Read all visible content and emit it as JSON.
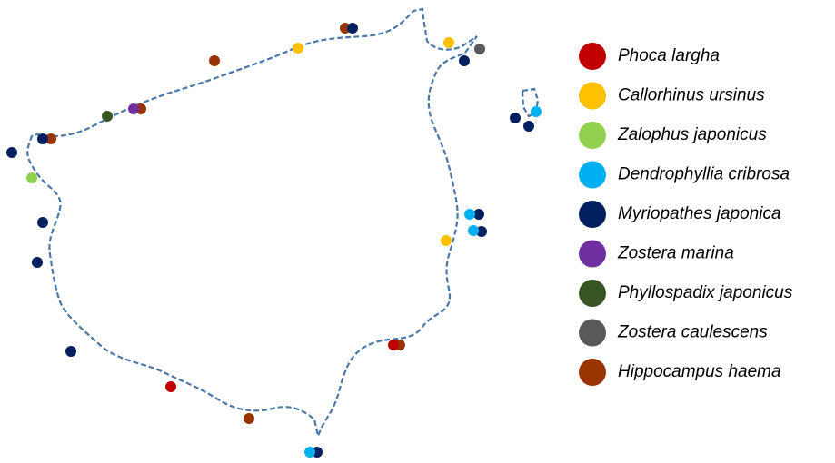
{
  "legend": [
    {
      "name": "Phoca largha",
      "color": "#c00000"
    },
    {
      "name": "Callorhinus ursinus",
      "color": "#ffc000"
    },
    {
      "name": "Zalophus japonicus",
      "color": "#92d050"
    },
    {
      "name": "Dendrophyllia cribrosa",
      "color": "#00b0f0"
    },
    {
      "name": "Myriopathes japonica",
      "color": "#002060"
    },
    {
      "name": "Zostera marina",
      "color": "#7030a0"
    },
    {
      "name": "Phyllospadix japonicus",
      "color": "#375623"
    },
    {
      "name": "Zostera caulescens",
      "color": "#595959"
    },
    {
      "name": "Hippocampus haema",
      "color": "#993300"
    }
  ]
}
